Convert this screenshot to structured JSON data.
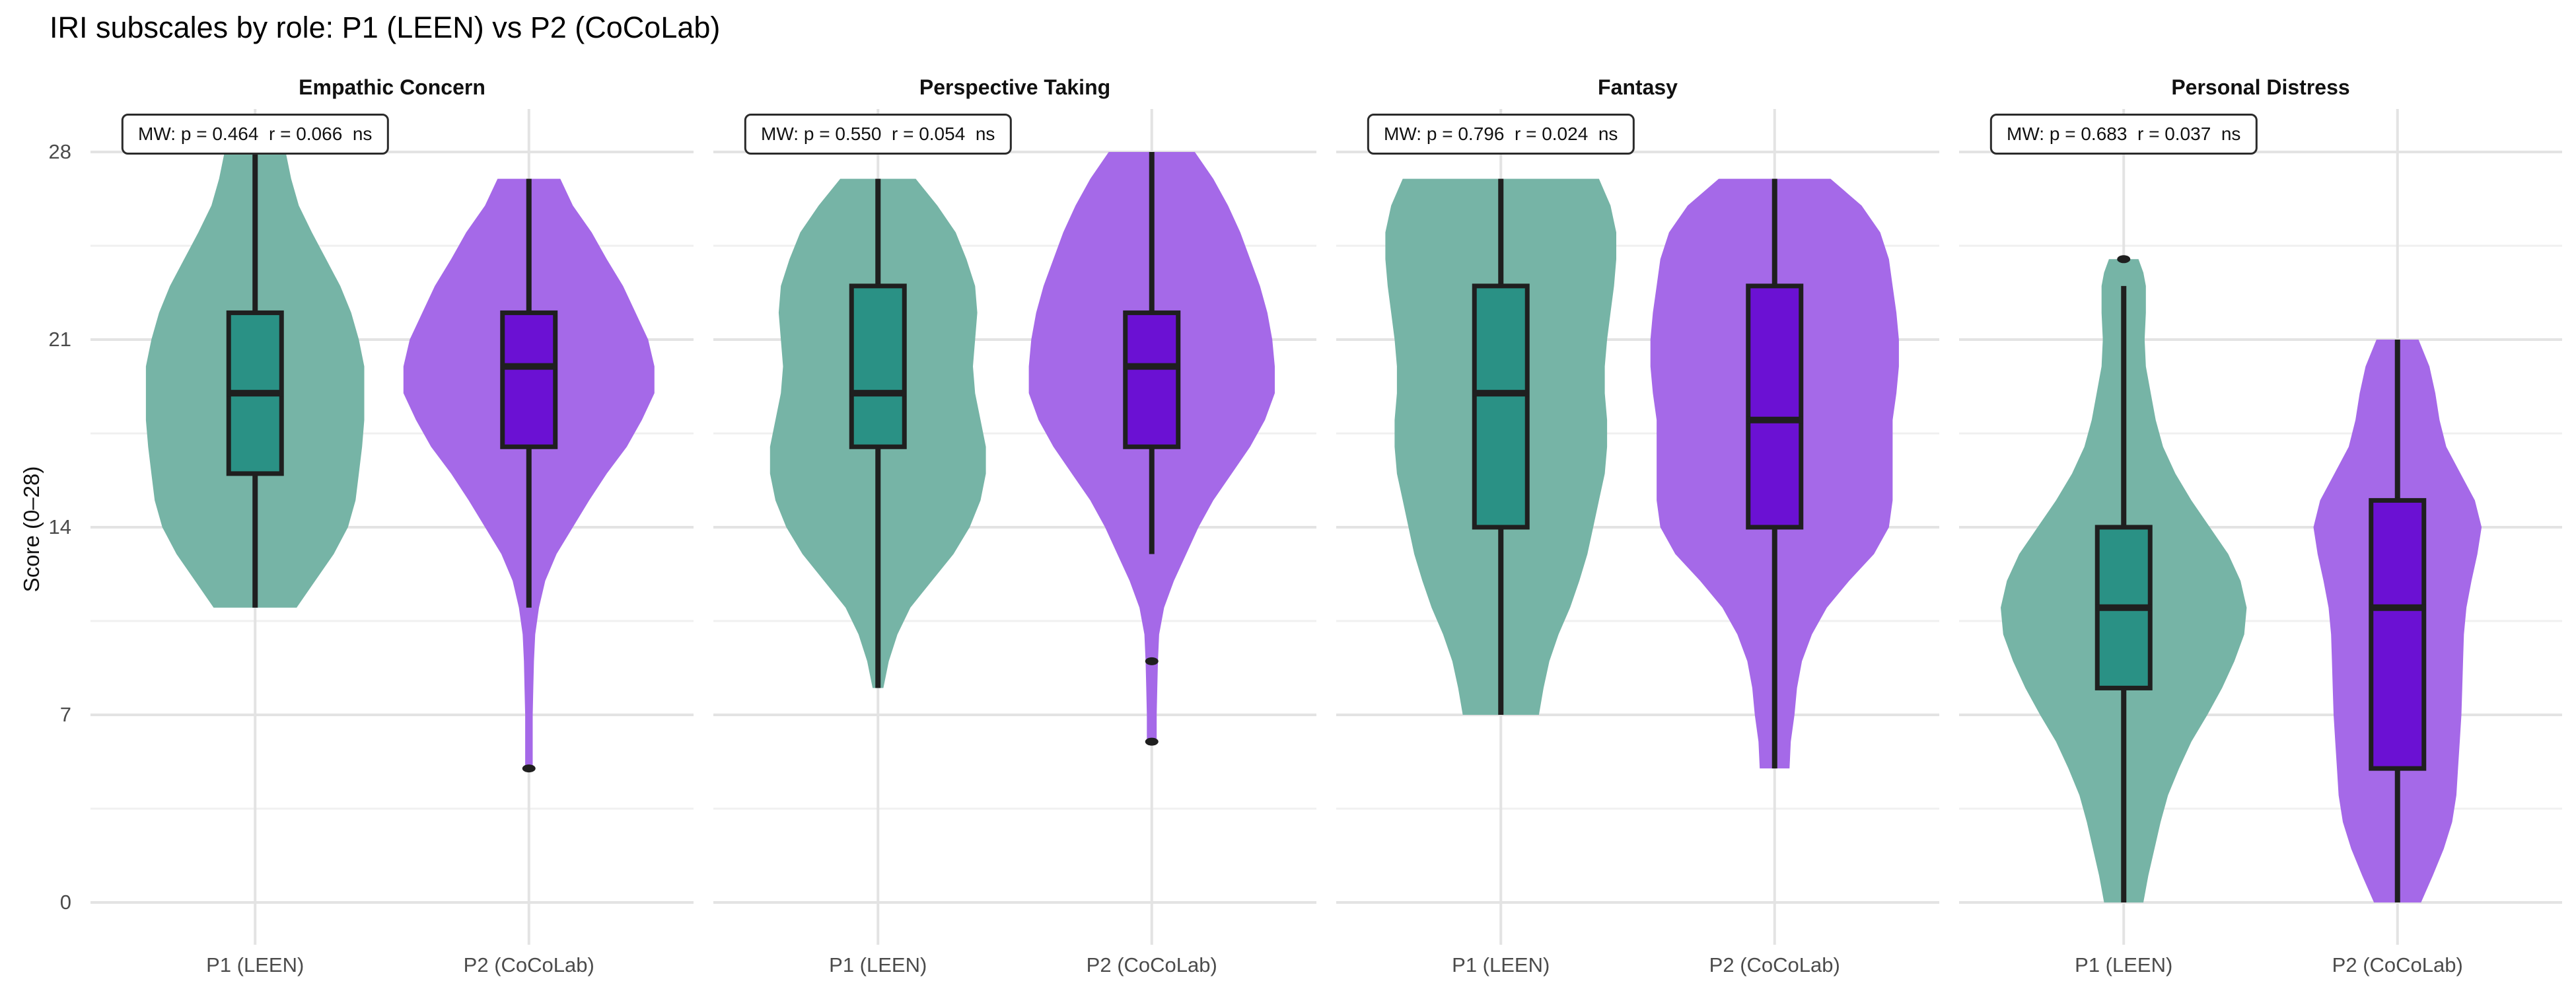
{
  "title": "IRI subscales by role: P1 (LEEN) vs P2 (CoCoLab)",
  "chart_data": {
    "type": "violin",
    "title": "IRI subscales by role: P1 (LEEN) vs P2 (CoCoLab)",
    "ylabel": "Score (0–28)",
    "ylim": [
      0,
      28
    ],
    "yticks": [
      0,
      7,
      14,
      21,
      28
    ],
    "minor_yticks": [
      3.5,
      10.5,
      17.5,
      24.5
    ],
    "categories": [
      "P1 (LEEN)",
      "P2 (CoCoLab)"
    ],
    "grid": "major+minor, light grey, no panel border",
    "legend_position": "none",
    "colors": {
      "P1 (LEEN)": {
        "violin": "#76b4a6",
        "box": "#2a9185"
      },
      "P2 (CoCoLab)": {
        "violin": "#a569e8",
        "box": "#6b11d3"
      },
      "stroke": "#1f1f1f",
      "grid_major": "#e3e3e3",
      "grid_minor": "#f0f0f0",
      "tick_text": "#4b4b4b"
    },
    "panels": [
      {
        "facet": "Empathic Concern",
        "annotation": "MW: p = 0.464  r = 0.066  ns",
        "series": [
          {
            "group": "P1 (LEEN)",
            "box": {
              "whisker_low": 11,
              "q1": 16,
              "median": 19,
              "q3": 22,
              "whisker_high": 28
            },
            "outliers": [],
            "violin_peak": 0.87,
            "violin_profile": [
              [
                28,
                0.28
              ],
              [
                27,
                0.33
              ],
              [
                26,
                0.4
              ],
              [
                25,
                0.52
              ],
              [
                24,
                0.65
              ],
              [
                23,
                0.78
              ],
              [
                22,
                0.88
              ],
              [
                21,
                0.95
              ],
              [
                20,
                1
              ],
              [
                19,
                1
              ],
              [
                18,
                1
              ],
              [
                17,
                0.98
              ],
              [
                16,
                0.95
              ],
              [
                15,
                0.92
              ],
              [
                14,
                0.85
              ],
              [
                13,
                0.72
              ],
              [
                12,
                0.55
              ],
              [
                11,
                0.38
              ]
            ]
          },
          {
            "group": "P2 (CoCoLab)",
            "box": {
              "whisker_low": 11,
              "q1": 17,
              "median": 20,
              "q3": 22,
              "whisker_high": 27
            },
            "outliers": [
              5
            ],
            "violin_peak": 1.0,
            "violin_profile": [
              [
                27,
                0.25
              ],
              [
                26,
                0.35
              ],
              [
                25,
                0.5
              ],
              [
                24,
                0.62
              ],
              [
                23,
                0.75
              ],
              [
                22,
                0.85
              ],
              [
                21,
                0.95
              ],
              [
                20,
                1
              ],
              [
                19,
                1
              ],
              [
                18,
                0.9
              ],
              [
                17,
                0.78
              ],
              [
                16,
                0.62
              ],
              [
                15,
                0.48
              ],
              [
                14,
                0.35
              ],
              [
                13,
                0.22
              ],
              [
                12,
                0.13
              ],
              [
                11,
                0.08
              ],
              [
                10,
                0.05
              ],
              [
                9,
                0.04
              ],
              [
                8,
                0.035
              ],
              [
                7,
                0.03
              ],
              [
                6,
                0.03
              ],
              [
                5,
                0.03
              ]
            ]
          }
        ]
      },
      {
        "facet": "Perspective Taking",
        "annotation": "MW: p = 0.550  r = 0.054  ns",
        "series": [
          {
            "group": "P1 (LEEN)",
            "box": {
              "whisker_low": 8,
              "q1": 17,
              "median": 19,
              "q3": 23,
              "whisker_high": 27
            },
            "outliers": [],
            "violin_peak": 0.86,
            "violin_profile": [
              [
                27,
                0.35
              ],
              [
                26,
                0.55
              ],
              [
                25,
                0.72
              ],
              [
                24,
                0.82
              ],
              [
                23,
                0.9
              ],
              [
                22,
                0.92
              ],
              [
                21,
                0.9
              ],
              [
                20,
                0.88
              ],
              [
                19,
                0.9
              ],
              [
                18,
                0.95
              ],
              [
                17,
                1
              ],
              [
                16,
                1
              ],
              [
                15,
                0.95
              ],
              [
                14,
                0.85
              ],
              [
                13,
                0.7
              ],
              [
                12,
                0.5
              ],
              [
                11,
                0.3
              ],
              [
                10,
                0.18
              ],
              [
                9,
                0.1
              ],
              [
                8,
                0.05
              ]
            ]
          },
          {
            "group": "P2 (CoCoLab)",
            "box": {
              "whisker_low": 13,
              "q1": 17,
              "median": 20,
              "q3": 22,
              "whisker_high": 28
            },
            "outliers": [
              9,
              6
            ],
            "violin_peak": 0.98,
            "violin_profile": [
              [
                28,
                0.35
              ],
              [
                27,
                0.5
              ],
              [
                26,
                0.62
              ],
              [
                25,
                0.72
              ],
              [
                24,
                0.8
              ],
              [
                23,
                0.88
              ],
              [
                22,
                0.94
              ],
              [
                21,
                0.98
              ],
              [
                20,
                1
              ],
              [
                19,
                1
              ],
              [
                18,
                0.92
              ],
              [
                17,
                0.8
              ],
              [
                16,
                0.65
              ],
              [
                15,
                0.5
              ],
              [
                14,
                0.38
              ],
              [
                13,
                0.28
              ],
              [
                12,
                0.18
              ],
              [
                11,
                0.1
              ],
              [
                10,
                0.06
              ],
              [
                9,
                0.05
              ],
              [
                8,
                0.045
              ],
              [
                7,
                0.04
              ],
              [
                6,
                0.04
              ]
            ]
          }
        ]
      },
      {
        "facet": "Fantasy",
        "annotation": "MW: p = 0.796  r = 0.024  ns",
        "series": [
          {
            "group": "P1 (LEEN)",
            "box": {
              "whisker_low": 7,
              "q1": 14,
              "median": 19,
              "q3": 23,
              "whisker_high": 27
            },
            "outliers": [],
            "violin_peak": 0.92,
            "violin_profile": [
              [
                27,
                0.85
              ],
              [
                26,
                0.95
              ],
              [
                25,
                1
              ],
              [
                24,
                1
              ],
              [
                23,
                0.98
              ],
              [
                22,
                0.95
              ],
              [
                21,
                0.92
              ],
              [
                20,
                0.9
              ],
              [
                19,
                0.9
              ],
              [
                18,
                0.92
              ],
              [
                17,
                0.92
              ],
              [
                16,
                0.9
              ],
              [
                15,
                0.85
              ],
              [
                14,
                0.8
              ],
              [
                13,
                0.75
              ],
              [
                12,
                0.68
              ],
              [
                11,
                0.6
              ],
              [
                10,
                0.5
              ],
              [
                9,
                0.42
              ],
              [
                8,
                0.37
              ],
              [
                7,
                0.33
              ]
            ]
          },
          {
            "group": "P2 (CoCoLab)",
            "box": {
              "whisker_low": 5,
              "q1": 14,
              "median": 18,
              "q3": 23,
              "whisker_high": 27
            },
            "outliers": [],
            "violin_peak": 0.99,
            "violin_profile": [
              [
                27,
                0.45
              ],
              [
                26,
                0.7
              ],
              [
                25,
                0.85
              ],
              [
                24,
                0.92
              ],
              [
                23,
                0.95
              ],
              [
                22,
                0.98
              ],
              [
                21,
                1
              ],
              [
                20,
                1
              ],
              [
                19,
                0.98
              ],
              [
                18,
                0.95
              ],
              [
                17,
                0.95
              ],
              [
                16,
                0.95
              ],
              [
                15,
                0.95
              ],
              [
                14,
                0.92
              ],
              [
                13,
                0.8
              ],
              [
                12,
                0.6
              ],
              [
                11,
                0.42
              ],
              [
                10,
                0.3
              ],
              [
                9,
                0.22
              ],
              [
                8,
                0.18
              ],
              [
                7,
                0.16
              ],
              [
                6,
                0.13
              ],
              [
                5,
                0.12
              ]
            ]
          }
        ]
      },
      {
        "facet": "Personal Distress",
        "annotation": "MW: p = 0.683  r = 0.037  ns",
        "series": [
          {
            "group": "P1 (LEEN)",
            "box": {
              "whisker_low": 0,
              "q1": 8,
              "median": 11,
              "q3": 14,
              "whisker_high": 23
            },
            "outliers": [
              24
            ],
            "violin_peak": 0.98,
            "violin_profile": [
              [
                24,
                0.12
              ],
              [
                23.5,
                0.16
              ],
              [
                23,
                0.18
              ],
              [
                22,
                0.18
              ],
              [
                21,
                0.17
              ],
              [
                20,
                0.18
              ],
              [
                19,
                0.22
              ],
              [
                18,
                0.26
              ],
              [
                17,
                0.32
              ],
              [
                16,
                0.42
              ],
              [
                15,
                0.55
              ],
              [
                14,
                0.7
              ],
              [
                13,
                0.85
              ],
              [
                12,
                0.95
              ],
              [
                11,
                1
              ],
              [
                10,
                0.98
              ],
              [
                9,
                0.9
              ],
              [
                8,
                0.8
              ],
              [
                7,
                0.68
              ],
              [
                6,
                0.55
              ],
              [
                5,
                0.45
              ],
              [
                4,
                0.36
              ],
              [
                3,
                0.3
              ],
              [
                2,
                0.25
              ],
              [
                1,
                0.2
              ],
              [
                0,
                0.16
              ]
            ]
          },
          {
            "group": "P2 (CoCoLab)",
            "box": {
              "whisker_low": 0,
              "q1": 5,
              "median": 11,
              "q3": 15,
              "whisker_high": 21
            },
            "outliers": [],
            "violin_peak": 0.67,
            "violin_profile": [
              [
                21,
                0.25
              ],
              [
                20,
                0.38
              ],
              [
                19,
                0.45
              ],
              [
                18,
                0.5
              ],
              [
                17,
                0.58
              ],
              [
                16,
                0.75
              ],
              [
                15,
                0.92
              ],
              [
                14,
                1
              ],
              [
                13,
                0.95
              ],
              [
                12,
                0.88
              ],
              [
                11,
                0.82
              ],
              [
                10,
                0.79
              ],
              [
                9,
                0.78
              ],
              [
                8,
                0.77
              ],
              [
                7,
                0.76
              ],
              [
                6,
                0.74
              ],
              [
                5,
                0.72
              ],
              [
                4,
                0.7
              ],
              [
                3,
                0.65
              ],
              [
                2,
                0.55
              ],
              [
                1,
                0.42
              ],
              [
                0,
                0.28
              ]
            ]
          }
        ]
      }
    ]
  }
}
